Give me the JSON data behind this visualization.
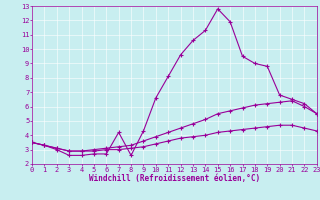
{
  "peak_x": [
    0,
    1,
    2,
    3,
    4,
    5,
    6,
    7,
    8,
    9,
    10,
    11,
    12,
    13,
    14,
    15,
    16,
    17,
    18,
    19,
    20,
    21,
    22,
    23
  ],
  "peak_y": [
    3.5,
    3.3,
    3.0,
    2.6,
    2.6,
    2.7,
    2.7,
    4.2,
    2.6,
    4.3,
    6.6,
    8.1,
    9.6,
    10.6,
    11.3,
    12.8,
    11.9,
    9.5,
    9.0,
    8.8,
    6.8,
    6.5,
    6.2,
    5.5
  ],
  "mid_x": [
    0,
    1,
    2,
    3,
    4,
    5,
    6,
    7,
    8,
    9,
    10,
    11,
    12,
    13,
    14,
    15,
    16,
    17,
    18,
    19,
    20,
    21,
    22,
    23
  ],
  "mid_y": [
    3.5,
    3.3,
    3.1,
    2.9,
    2.9,
    3.0,
    3.1,
    3.2,
    3.3,
    3.6,
    3.9,
    4.2,
    4.5,
    4.8,
    5.1,
    5.5,
    5.7,
    5.9,
    6.1,
    6.2,
    6.3,
    6.4,
    6.0,
    5.5
  ],
  "low_x": [
    0,
    1,
    2,
    3,
    4,
    5,
    6,
    7,
    8,
    9,
    10,
    11,
    12,
    13,
    14,
    15,
    16,
    17,
    18,
    19,
    20,
    21,
    22,
    23
  ],
  "low_y": [
    3.5,
    3.3,
    3.1,
    2.9,
    2.9,
    2.9,
    3.0,
    3.0,
    3.1,
    3.2,
    3.4,
    3.6,
    3.8,
    3.9,
    4.0,
    4.2,
    4.3,
    4.4,
    4.5,
    4.6,
    4.7,
    4.7,
    4.5,
    4.3
  ],
  "bg_color": "#c8eef0",
  "line_color": "#990099",
  "xlabel": "Windchill (Refroidissement éolien,°C)",
  "ylim": [
    2,
    13
  ],
  "xlim": [
    0,
    23
  ],
  "yticks": [
    2,
    3,
    4,
    5,
    6,
    7,
    8,
    9,
    10,
    11,
    12,
    13
  ],
  "xticks": [
    0,
    1,
    2,
    3,
    4,
    5,
    6,
    7,
    8,
    9,
    10,
    11,
    12,
    13,
    14,
    15,
    16,
    17,
    18,
    19,
    20,
    21,
    22,
    23
  ],
  "tick_fontsize": 5,
  "xlabel_fontsize": 5.5,
  "linewidth": 0.8,
  "markersize": 3
}
